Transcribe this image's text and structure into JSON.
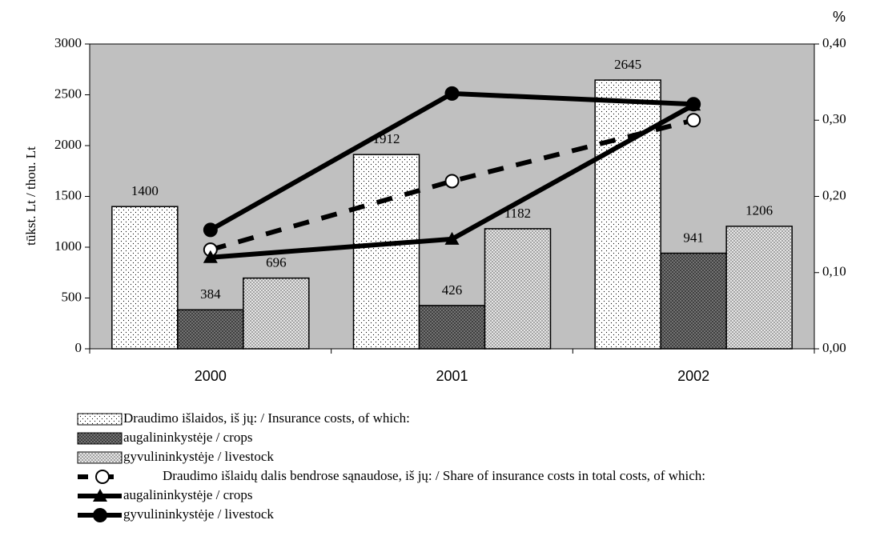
{
  "chart_data": {
    "type": "bar",
    "ylabel": "tūkst. Lt / thou. Lt",
    "y2label": "%",
    "categories": [
      "2000",
      "2001",
      "2002"
    ],
    "ylim": [
      0,
      3000
    ],
    "yticks": [
      0,
      500,
      1000,
      1500,
      2000,
      2500,
      3000
    ],
    "y2lim": [
      0,
      0.4
    ],
    "y2ticks": [
      {
        "value": 0,
        "label": "0,00"
      },
      {
        "value": 0.1,
        "label": "0,10"
      },
      {
        "value": 0.2,
        "label": "0,20"
      },
      {
        "value": 0.3,
        "label": "0,30"
      },
      {
        "value": 0.4,
        "label": "0,40"
      }
    ],
    "series": [
      {
        "name": "Draudimo išlaidos, iš jų: / Insurance costs, of which:",
        "type": "bar",
        "color": "#ffffff",
        "values": [
          1400,
          1912,
          2645
        ]
      },
      {
        "name": "augalininkystėje / crops",
        "type": "bar",
        "color": "#808080",
        "values": [
          384,
          426,
          941
        ]
      },
      {
        "name": "gyvulininkystėje / livestock",
        "type": "bar",
        "color": "#e6e6e6",
        "values": [
          696,
          1182,
          1206
        ]
      },
      {
        "name": "Draudimo išlaidų dalis bendrose sąnaudose, iš jų: / Share of insurance costs in total costs, of which:",
        "type": "line",
        "axis": "y2",
        "dashed": true,
        "marker": "open-circle",
        "color": "#000000",
        "values": [
          0.13,
          0.22,
          0.3
        ]
      },
      {
        "name": "augalininkystėje / crops",
        "type": "line",
        "axis": "y2",
        "dashed": false,
        "marker": "triangle",
        "color": "#000000",
        "values": [
          0.12,
          0.144,
          0.32
        ]
      },
      {
        "name": "gyvulininkystėje / livestock",
        "type": "line",
        "axis": "y2",
        "dashed": false,
        "marker": "circle",
        "color": "#000000",
        "values": [
          0.156,
          0.335,
          0.321
        ]
      }
    ]
  }
}
